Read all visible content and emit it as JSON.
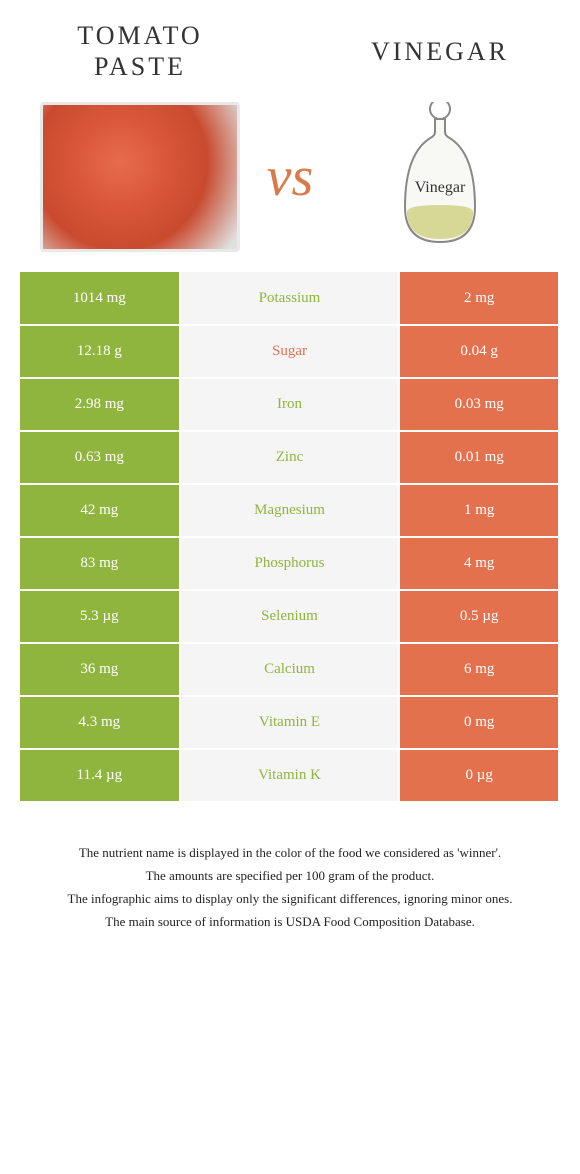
{
  "titles": {
    "left": "Tomato Paste",
    "right": "Vinegar",
    "vs": "vs"
  },
  "colors": {
    "green": "#8fb53f",
    "orange": "#e3714e",
    "mid_bg": "#f5f5f5",
    "text_white": "#ffffff"
  },
  "rows": [
    {
      "left": "1014 mg",
      "label": "Potassium",
      "right": "2 mg",
      "winner": "left"
    },
    {
      "left": "12.18 g",
      "label": "Sugar",
      "right": "0.04 g",
      "winner": "right"
    },
    {
      "left": "2.98 mg",
      "label": "Iron",
      "right": "0.03 mg",
      "winner": "left"
    },
    {
      "left": "0.63 mg",
      "label": "Zinc",
      "right": "0.01 mg",
      "winner": "left"
    },
    {
      "left": "42 mg",
      "label": "Magnesium",
      "right": "1 mg",
      "winner": "left"
    },
    {
      "left": "83 mg",
      "label": "Phosphorus",
      "right": "4 mg",
      "winner": "left"
    },
    {
      "left": "5.3 µg",
      "label": "Selenium",
      "right": "0.5 µg",
      "winner": "left"
    },
    {
      "left": "36 mg",
      "label": "Calcium",
      "right": "6 mg",
      "winner": "left"
    },
    {
      "left": "4.3 mg",
      "label": "Vitamin E",
      "right": "0 mg",
      "winner": "left"
    },
    {
      "left": "11.4 µg",
      "label": "Vitamin K",
      "right": "0 µg",
      "winner": "left"
    }
  ],
  "footer": {
    "l1": "The nutrient name is displayed in the color of the food we considered as 'winner'.",
    "l2": "The amounts are specified per 100 gram of the product.",
    "l3": "The infographic aims to display only the significant differences, ignoring minor ones.",
    "l4": "The main source of information is USDA Food Composition Database."
  },
  "vinegar_label": "Vinegar"
}
